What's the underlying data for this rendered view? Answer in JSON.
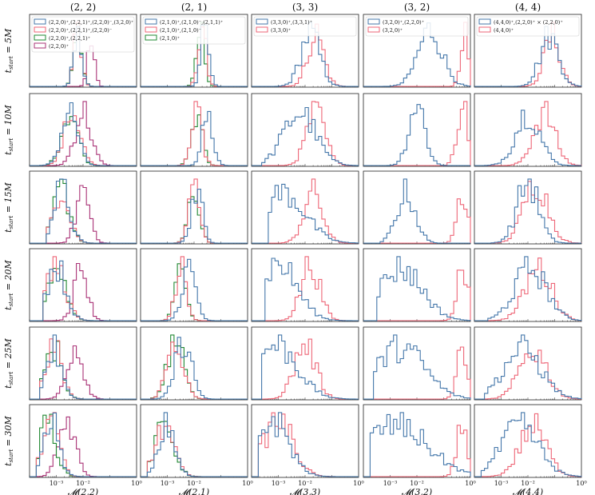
{
  "chart_data": {
    "type": "histogram-grid",
    "columns": [
      "(2, 2)",
      "(2, 1)",
      "(3, 3)",
      "(3, 2)",
      "(4, 4)"
    ],
    "rows": [
      "t_start = 5M",
      "t_start = 10M",
      "t_start = 15M",
      "t_start = 20M",
      "t_start = 25M",
      "t_start = 30M"
    ],
    "row_t_values": [
      "5M",
      "10M",
      "15M",
      "20M",
      "25M",
      "30M"
    ],
    "xlabels": [
      "𝓜(2,2)",
      "𝓜(2,1)",
      "𝓜(3,3)",
      "𝓜(3,2)",
      "𝓜(4,4)"
    ],
    "xscale": "log",
    "xlim": [
      0.0001,
      1
    ],
    "xticks": [
      "10⁻³",
      "10⁻²",
      "10⁰"
    ],
    "xtick_values": [
      0.001,
      0.01,
      1
    ],
    "legend_placement": "top-left (first row)",
    "colors": {
      "blue": "#4477aa",
      "red": "#ee6677",
      "green": "#228833",
      "purple": "#aa3377"
    },
    "legends": [
      [
        {
          "label": "(2,2,0)⁺,(2,2,1)⁺,(2,2,0)⁻,(3,2,0)⁺",
          "color": "#4477aa"
        },
        {
          "label": "(2,2,0)⁺,(2,2,1)⁺,(2,2,0)⁻",
          "color": "#ee6677"
        },
        {
          "label": "(2,2,0)⁺,(2,2,1)⁺",
          "color": "#228833"
        },
        {
          "label": "(2,2,0)⁺",
          "color": "#aa3377"
        }
      ],
      [
        {
          "label": "(2,1,0)⁺,(2,1,0)⁻,(2,1,1)⁺",
          "color": "#4477aa"
        },
        {
          "label": "(2,1,0)⁺,(2,1,0)⁻",
          "color": "#ee6677"
        },
        {
          "label": "(2,1,0)⁺",
          "color": "#228833"
        }
      ],
      [
        {
          "label": "(3,3,0)⁺,(3,3,1)⁺",
          "color": "#4477aa"
        },
        {
          "label": "(3,3,0)⁺",
          "color": "#ee6677"
        }
      ],
      [
        {
          "label": "(3,2,0)⁺,(2,2,0)⁺",
          "color": "#4477aa"
        },
        {
          "label": "(3,2,0)⁺",
          "color": "#ee6677"
        }
      ],
      [
        {
          "label": "(4,4,0)⁺,(2,2,0)⁺ × (2,2,0)⁺",
          "color": "#4477aa"
        },
        {
          "label": "(4,4,0)⁺",
          "color": "#ee6677"
        }
      ]
    ],
    "histogram_shapes": {
      "note": "approximate log10(mismatch) peak location for each series per panel [row][col][series] as [centre, width]",
      "peaks": [
        [
          [
            [
              -2.2,
              0.15
            ],
            [
              -2.2,
              0.15
            ],
            [
              -2.2,
              0.15
            ],
            [
              -1.7,
              0.12
            ]
          ],
          [
            [
              -1.6,
              0.15
            ],
            [
              -1.7,
              0.15
            ],
            [
              -1.75,
              0.15
            ]
          ],
          [
            [
              -1.8,
              0.35
            ],
            [
              -1.6,
              0.3
            ]
          ],
          [
            [
              -1.5,
              0.45
            ],
            [
              -0.2,
              0.15
            ]
          ],
          [
            [
              -1.2,
              0.35
            ],
            [
              -1.1,
              0.3
            ]
          ]
        ],
        [
          [
            [
              -2.5,
              0.3
            ],
            [
              -2.4,
              0.3
            ],
            [
              -2.5,
              0.3
            ],
            [
              -2.0,
              0.3
            ]
          ],
          [
            [
              -1.5,
              0.2
            ],
            [
              -1.9,
              0.2
            ],
            [
              -1.9,
              0.2
            ]
          ],
          [
            [
              -2.2,
              0.6
            ],
            [
              -1.6,
              0.35
            ]
          ],
          [
            [
              -2.0,
              0.3
            ],
            [
              -0.3,
              0.2
            ]
          ],
          [
            [
              -2.0,
              0.45
            ],
            [
              -1.4,
              0.4
            ]
          ]
        ],
        [
          [
            [
              -2.8,
              0.3
            ],
            [
              -2.8,
              0.3
            ],
            [
              -2.8,
              0.3
            ],
            [
              -2.0,
              0.25
            ]
          ],
          [
            [
              -1.9,
              0.2
            ],
            [
              -2.0,
              0.2
            ],
            [
              -2.0,
              0.2
            ]
          ],
          [
            [
              -2.8,
              0.8
            ],
            [
              -1.7,
              0.35
            ]
          ],
          [
            [
              -2.4,
              0.35
            ],
            [
              -0.3,
              0.2
            ]
          ],
          [
            [
              -2.0,
              0.4
            ],
            [
              -1.7,
              0.45
            ]
          ]
        ],
        [
          [
            [
              -3.0,
              0.35
            ],
            [
              -3.0,
              0.35
            ],
            [
              -3.0,
              0.35
            ],
            [
              -2.1,
              0.25
            ]
          ],
          [
            [
              -2.2,
              0.25
            ],
            [
              -2.5,
              0.2
            ],
            [
              -2.5,
              0.2
            ]
          ],
          [
            [
              -3.0,
              0.7
            ],
            [
              -1.8,
              0.35
            ]
          ],
          [
            [
              -2.6,
              0.8
            ],
            [
              -0.3,
              0.2
            ]
          ],
          [
            [
              -1.9,
              0.6
            ],
            [
              -1.6,
              0.5
            ]
          ]
        ],
        [
          [
            [
              -3.1,
              0.3
            ],
            [
              -3.1,
              0.3
            ],
            [
              -3.1,
              0.3
            ],
            [
              -2.3,
              0.3
            ]
          ],
          [
            [
              -2.4,
              0.3
            ],
            [
              -2.7,
              0.3
            ],
            [
              -2.7,
              0.3
            ]
          ],
          [
            [
              -3.1,
              0.8
            ],
            [
              -2.0,
              0.4
            ]
          ],
          [
            [
              -2.6,
              0.9
            ],
            [
              -0.3,
              0.2
            ]
          ],
          [
            [
              -2.2,
              0.7
            ],
            [
              -1.8,
              0.5
            ]
          ]
        ],
        [
          [
            [
              -3.2,
              0.3
            ],
            [
              -3.2,
              0.3
            ],
            [
              -3.3,
              0.3
            ],
            [
              -2.6,
              0.3
            ]
          ],
          [
            [
              -3.0,
              0.3
            ],
            [
              -3.1,
              0.35
            ],
            [
              -3.1,
              0.35
            ]
          ],
          [
            [
              -3.2,
              0.6
            ],
            [
              -3.0,
              0.55
            ]
          ],
          [
            [
              -2.8,
              1.2
            ],
            [
              -0.3,
              0.2
            ]
          ],
          [
            [
              -2.3,
              0.7
            ],
            [
              -1.8,
              0.5
            ]
          ]
        ]
      ]
    }
  }
}
